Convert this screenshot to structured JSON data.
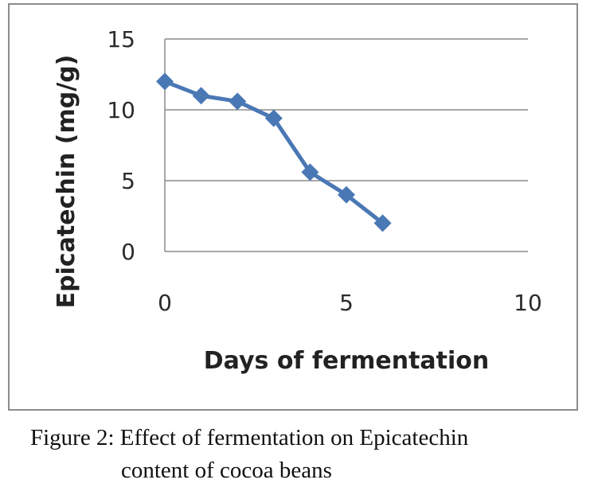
{
  "chart_data": {
    "type": "line",
    "title": "",
    "xlabel": "Days of fermentation",
    "ylabel": "Epicatechin (mg/g)",
    "xlim": [
      0,
      10
    ],
    "ylim": [
      0,
      15
    ],
    "xticks": [
      0,
      5,
      10
    ],
    "yticks": [
      0,
      5,
      10,
      15
    ],
    "grid": "horizontal",
    "legend": "none",
    "series": [
      {
        "color": "#4a78b5",
        "marker": "diamond",
        "x": [
          0,
          1,
          2,
          3,
          4,
          5,
          6
        ],
        "y": [
          12.0,
          11.0,
          10.6,
          9.4,
          5.6,
          4.0,
          2.0
        ]
      }
    ]
  },
  "caption": {
    "line1": "Figure 2: Effect of fermentation on Epicatechin",
    "line2": "content of cocoa beans"
  }
}
